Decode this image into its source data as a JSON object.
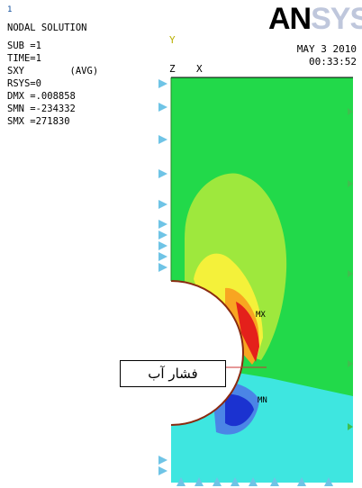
{
  "top_marker": "1",
  "header": {
    "title": "NODAL SOLUTION",
    "lines": [
      "SUB =1",
      "TIME=1",
      "SXY        (AVG)",
      "RSYS=0",
      "DMX =.008858",
      "SMN =-234332",
      "SMX =271830"
    ]
  },
  "brand": {
    "solid": "AN",
    "faded": "SYS"
  },
  "date": {
    "line1": "MAY  3 2010",
    "line2": "00:33:52"
  },
  "axes": {
    "y": "Y",
    "z": "Z",
    "x": "X"
  },
  "markers": {
    "mx": "MX",
    "mn": "MN"
  },
  "callout": {
    "text": "فشار آب"
  },
  "colors": {
    "green": "#22d94a",
    "yellow_green": "#9ee83d",
    "yellow": "#f4f13a",
    "orange": "#f8a521",
    "red": "#e4201b",
    "cyan": "#3ee6e0",
    "blue": "#1b32d0",
    "support_triangle": "#6fc4e6"
  }
}
